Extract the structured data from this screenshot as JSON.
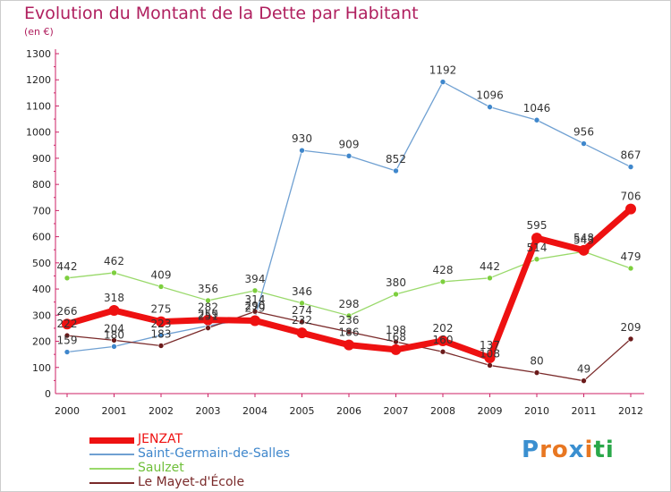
{
  "title": "Evolution du Montant de la Dette par Habitant",
  "subtitle": "(en €)",
  "logo": {
    "text": "Proxiti",
    "colors": [
      "#3a8fd0",
      "#e87722",
      "#e87722",
      "#3a8fd0",
      "#e87722",
      "#2aa84a",
      "#2aa84a"
    ]
  },
  "chart_data": {
    "type": "line",
    "x": [
      "2000",
      "2001",
      "2002",
      "2003",
      "2004",
      "2005",
      "2006",
      "2007",
      "2008",
      "2009",
      "2010",
      "2011",
      "2012"
    ],
    "ylim": [
      0,
      1300
    ],
    "yticks": [
      0,
      100,
      200,
      300,
      400,
      500,
      600,
      700,
      800,
      900,
      1000,
      1100,
      1200,
      1300
    ],
    "grid": false,
    "legend_position": "bottom-left",
    "series": [
      {
        "name": "Saulzet",
        "color": "#99d96a",
        "marker": "#7dcf3e",
        "values": [
          442,
          462,
          409,
          356,
          394,
          346,
          298,
          380,
          428,
          442,
          514,
          543,
          479
        ]
      },
      {
        "name": "Saint-Germain-de-Salles",
        "color": "#6fa0d2",
        "marker": "#3f87cc",
        "values": [
          159,
          180,
          223,
          259,
          290,
          930,
          909,
          852,
          1192,
          1096,
          1046,
          956,
          867
        ]
      },
      {
        "name": "Le Mayet-d'École",
        "color": "#7a2a2a",
        "marker": "#6b1a1a",
        "values": [
          222,
          204,
          183,
          251,
          314,
          274,
          236,
          198,
          160,
          108,
          80,
          49,
          209
        ]
      },
      {
        "name": "JENZAT",
        "color": "#ee1111",
        "marker": "#ee1111",
        "values": [
          266,
          318,
          275,
          282,
          279,
          232,
          186,
          168,
          202,
          137,
          595,
          548,
          706
        ]
      }
    ],
    "legend_order": [
      "JENZAT",
      "Saint-Germain-de-Salles",
      "Saulzet",
      "Le Mayet-d'École"
    ]
  }
}
